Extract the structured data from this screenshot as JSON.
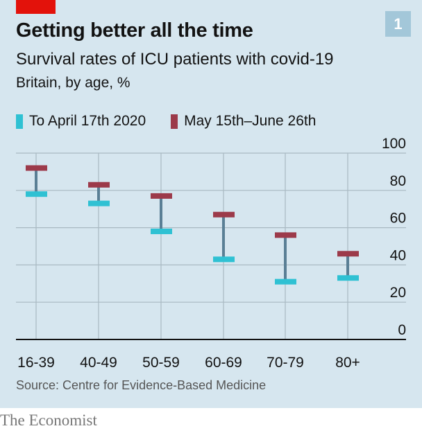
{
  "header": {
    "title": "Getting better all the time",
    "subtitle": "Survival rates of ICU patients with covid-19",
    "units": "Britain, by age, %",
    "badge": "1"
  },
  "colors": {
    "panel_bg": "#d6e6ef",
    "accent_red": "#e3120b",
    "series1": "#2fc1d3",
    "series2": "#9c3a4a",
    "connector": "#5a7f95",
    "grid": "#a9b9c2"
  },
  "legend": [
    {
      "label": "To April 17th 2020",
      "color": "#2fc1d3"
    },
    {
      "label": "May 15th–June 26th",
      "color": "#9c3a4a"
    }
  ],
  "chart_data": {
    "type": "dumbbell",
    "title": "Getting better all the time",
    "subtitle": "Survival rates of ICU patients with covid-19",
    "ylabel": "Britain, by age, %",
    "categories": [
      "16-39",
      "40-49",
      "50-59",
      "60-69",
      "70-79",
      "80+"
    ],
    "series": [
      {
        "name": "To April 17th 2020",
        "values": [
          78,
          73,
          58,
          43,
          31,
          33
        ]
      },
      {
        "name": "May 15th–June 26th",
        "values": [
          92,
          83,
          77,
          67,
          56,
          46
        ]
      }
    ],
    "ylim": [
      0,
      100
    ],
    "yticks": [
      "0",
      "20",
      "40",
      "60",
      "80",
      "100"
    ],
    "grid": true,
    "yaxis_position": "right",
    "legend_position": "top-left"
  },
  "footer": {
    "source": "Source: Centre for Evidence-Based Medicine",
    "brand": "The Economist"
  }
}
